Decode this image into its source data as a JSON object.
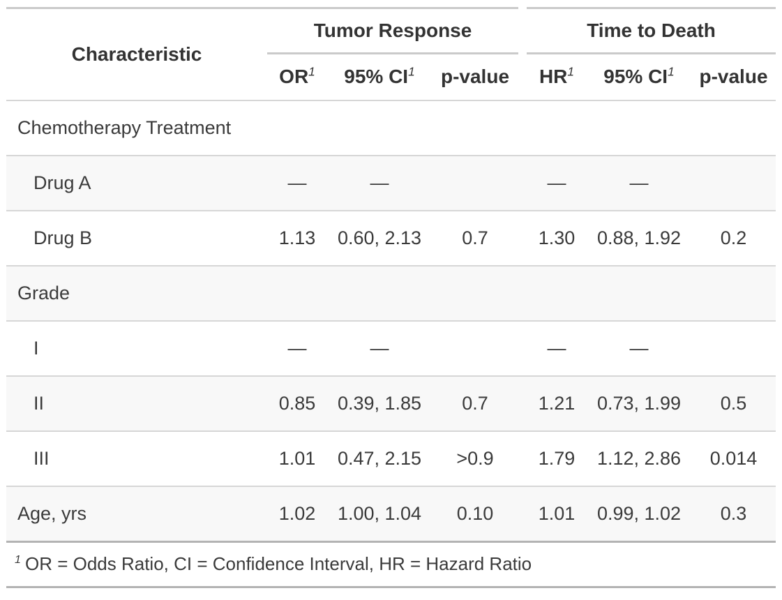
{
  "table": {
    "header": {
      "stub_label": "Characteristic",
      "spanners": [
        {
          "label": "Tumor Response"
        },
        {
          "label": "Time to Death"
        }
      ],
      "columns": [
        {
          "label": "OR",
          "sup": "1"
        },
        {
          "label": "95% CI",
          "sup": "1"
        },
        {
          "label": "p-value",
          "sup": ""
        },
        {
          "label": "HR",
          "sup": "1"
        },
        {
          "label": "95% CI",
          "sup": "1"
        },
        {
          "label": "p-value",
          "sup": ""
        }
      ]
    },
    "rows": [
      {
        "label": "Chemotherapy Treatment",
        "type": "group",
        "cells": [
          "",
          "",
          "",
          "",
          "",
          ""
        ]
      },
      {
        "label": "Drug A",
        "type": "child",
        "cells": [
          "—",
          "—",
          "",
          "—",
          "—",
          ""
        ]
      },
      {
        "label": "Drug B",
        "type": "child",
        "cells": [
          "1.13",
          "0.60, 2.13",
          "0.7",
          "1.30",
          "0.88, 1.92",
          "0.2"
        ]
      },
      {
        "label": "Grade",
        "type": "group",
        "cells": [
          "",
          "",
          "",
          "",
          "",
          ""
        ]
      },
      {
        "label": "I",
        "type": "child",
        "cells": [
          "—",
          "—",
          "",
          "—",
          "—",
          ""
        ]
      },
      {
        "label": "II",
        "type": "child",
        "cells": [
          "0.85",
          "0.39, 1.85",
          "0.7",
          "1.21",
          "0.73, 1.99",
          "0.5"
        ]
      },
      {
        "label": "III",
        "type": "child",
        "cells": [
          "1.01",
          "0.47, 2.15",
          ">0.9",
          "1.79",
          "1.12, 2.86",
          "0.014"
        ]
      },
      {
        "label": "Age, yrs",
        "type": "variable",
        "cells": [
          "1.02",
          "1.00, 1.04",
          "0.10",
          "1.01",
          "0.99, 1.02",
          "0.3"
        ]
      }
    ],
    "footnote": {
      "marker": "1",
      "text": "OR = Odds Ratio, CI = Confidence Interval, HR = Hazard Ratio"
    }
  },
  "colors": {
    "border_strong": "#b3b3b3",
    "border_header": "#cacaca",
    "border_light": "#d6d6d6",
    "stripe": "#f8f8f8",
    "text_body": "#3a3a3a",
    "text_header": "#333333",
    "bg": "#ffffff"
  }
}
